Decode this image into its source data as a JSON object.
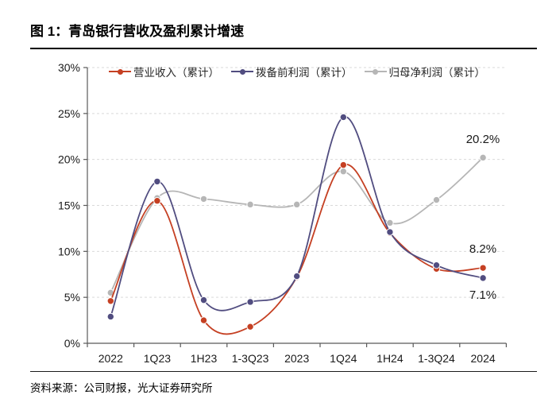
{
  "figure": {
    "title": "图 1：青岛银行营收及盈利累计增速",
    "source": "资料来源：公司财报，光大证券研究所"
  },
  "chart_data": {
    "type": "line",
    "title": "青岛银行营收及盈利累计增速",
    "categories": [
      "2022",
      "1Q23",
      "1H23",
      "1-3Q23",
      "2023",
      "1Q24",
      "1H24",
      "1-3Q24",
      "2024"
    ],
    "series": [
      {
        "name": "营业收入（累计）",
        "color": "#c54023",
        "values": [
          4.6,
          15.5,
          2.5,
          1.8,
          7.2,
          19.4,
          12.0,
          8.1,
          8.2
        ]
      },
      {
        "name": "拨备前利润（累计）",
        "color": "#514d80",
        "values": [
          2.9,
          17.6,
          4.7,
          4.5,
          7.3,
          24.6,
          12.1,
          8.5,
          7.1
        ]
      },
      {
        "name": "归母净利润（累计）",
        "color": "#b6b6b6",
        "values": [
          5.5,
          15.8,
          15.7,
          15.1,
          15.1,
          18.7,
          13.1,
          15.6,
          20.2
        ]
      }
    ],
    "ylim": [
      0,
      30
    ],
    "ytick_step": 5,
    "ytick_suffix": "%",
    "grid": "horizontal-dashed",
    "legend_position": "top-center-inside",
    "annotations": [
      {
        "text": "20.2%",
        "series": "归母净利润（累计）",
        "category": "2024"
      },
      {
        "text": "8.2%",
        "series": "营业收入（累计）",
        "category": "2024"
      },
      {
        "text": "7.1%",
        "series": "拨备前利润（累计）",
        "category": "2024"
      }
    ]
  },
  "colors": {
    "grid": "#d9d9d9",
    "axis": "#595959",
    "tick_text": "#1a1a1a",
    "rule": "#000000"
  }
}
